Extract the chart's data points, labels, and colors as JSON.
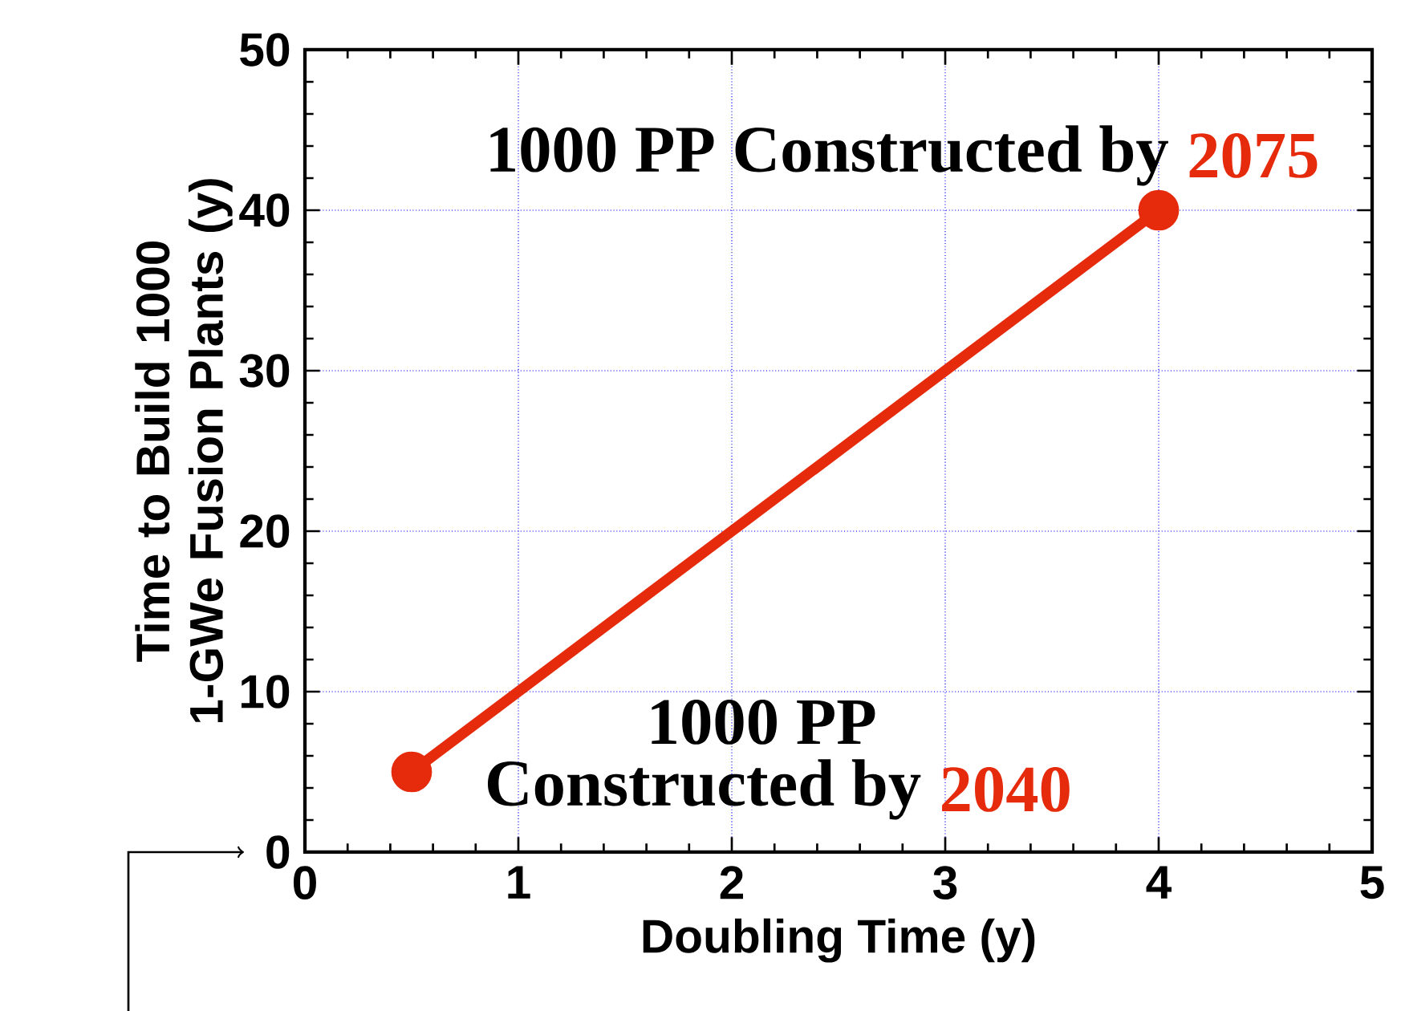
{
  "chart_data": {
    "type": "line",
    "xlabel": "Doubling Time (y)",
    "ylabel": "Time to Build 1000 1-GWe Fusion Plants (y)",
    "x": [
      0.5,
      4
    ],
    "series": [
      {
        "color": "#e62a0c",
        "values": [
          5,
          40
        ]
      }
    ],
    "xlim": [
      0,
      5
    ],
    "ylim": [
      0,
      50
    ],
    "xticks": [
      0,
      1,
      2,
      3,
      4,
      5
    ],
    "yticks": [
      0,
      10,
      20,
      30,
      40,
      50
    ],
    "grid": true,
    "marker": "circle",
    "line_style": "solid",
    "annotations": [
      "1000 PP Constructed by",
      "2075",
      "1000 PP",
      "Constructed by",
      "2040"
    ]
  }
}
